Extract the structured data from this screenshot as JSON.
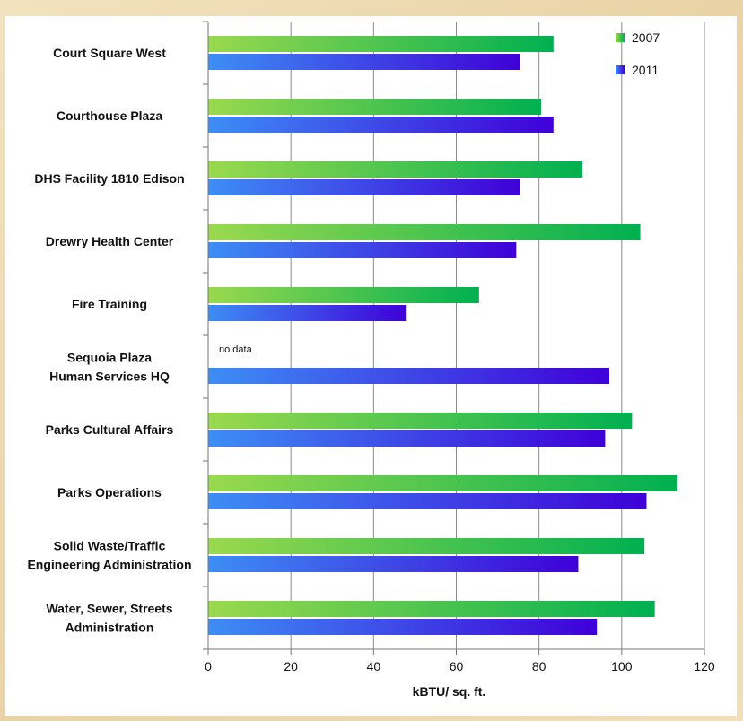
{
  "chart_data": {
    "type": "bar",
    "orientation": "horizontal",
    "categories": [
      [
        "Court Square West"
      ],
      [
        "Courthouse Plaza"
      ],
      [
        "DHS Facility  1810 Edison"
      ],
      [
        "Drewry Health Center"
      ],
      [
        "Fire Training"
      ],
      [
        "Sequoia Plaza",
        "Human Services HQ"
      ],
      [
        "Parks Cultural Affairs"
      ],
      [
        "Parks Operations"
      ],
      [
        "Solid Waste/Traffic",
        "Engineering Administration"
      ],
      [
        "Water, Sewer, Streets",
        "Administration"
      ]
    ],
    "series": [
      {
        "name": "2007",
        "values": [
          83.5,
          80.5,
          90.5,
          104.5,
          65.5,
          null,
          102.5,
          113.5,
          105.5,
          108
        ],
        "color_start": "#9ad94e",
        "color_end": "#00b050"
      },
      {
        "name": "2011",
        "values": [
          75.5,
          83.5,
          75.5,
          74.5,
          48,
          97,
          96,
          106,
          89.5,
          94
        ],
        "color_start": "#3d8ef5",
        "color_end": "#3f00d8"
      }
    ],
    "annotations": [
      {
        "category_index": 5,
        "series": "2007",
        "text": "no data"
      }
    ],
    "xlabel": "kBTU/ sq. ft.",
    "ylabel": "",
    "xlim": [
      0,
      120
    ],
    "xticks": [
      0,
      20,
      40,
      60,
      80,
      100,
      120
    ],
    "grid": "vertical",
    "legend_position": "top-right"
  }
}
